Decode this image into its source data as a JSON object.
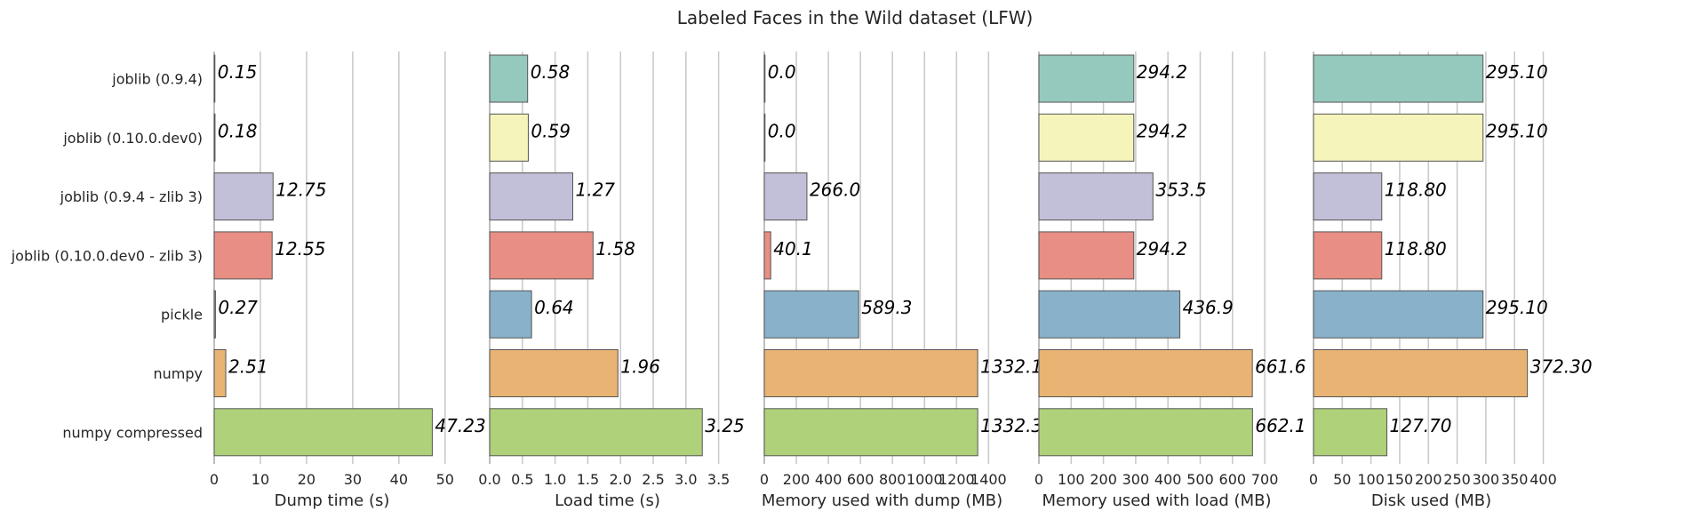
{
  "title": "Labeled Faces in the Wild dataset (LFW)",
  "colors": [
    "#96c9bd",
    "#f5f5bb",
    "#c2bfd8",
    "#e98e84",
    "#89b1ca",
    "#e8b373",
    "#aed17a"
  ],
  "chart_data": [
    {
      "type": "bar",
      "orientation": "horizontal",
      "categories": [
        "joblib (0.9.4)",
        "joblib (0.10.0.dev0)",
        "joblib (0.9.4 - zlib 3)",
        "joblib (0.10.0.dev0 - zlib 3)",
        "pickle",
        "numpy",
        "numpy compressed"
      ],
      "values": [
        0.15,
        0.18,
        12.75,
        12.55,
        0.27,
        2.51,
        47.23
      ],
      "value_labels": [
        "0.15",
        "0.18",
        "12.75",
        "12.55",
        "0.27",
        "2.51",
        "47.23"
      ],
      "xlabel": "Dump time (s)",
      "xlim": [
        0,
        51
      ],
      "xticks": [
        0,
        10,
        20,
        30,
        40,
        50
      ],
      "xtick_labels": [
        "0",
        "10",
        "20",
        "30",
        "40",
        "50"
      ],
      "grid": true
    },
    {
      "type": "bar",
      "orientation": "horizontal",
      "categories": [
        "joblib (0.9.4)",
        "joblib (0.10.0.dev0)",
        "joblib (0.9.4 - zlib 3)",
        "joblib (0.10.0.dev0 - zlib 3)",
        "pickle",
        "numpy",
        "numpy compressed"
      ],
      "values": [
        0.58,
        0.59,
        1.27,
        1.58,
        0.64,
        1.96,
        3.25
      ],
      "value_labels": [
        "0.58",
        "0.59",
        "1.27",
        "1.58",
        "0.64",
        "1.96",
        "3.25"
      ],
      "xlabel": "Load time (s)",
      "xlim": [
        0,
        3.6
      ],
      "xticks": [
        0,
        0.5,
        1,
        1.5,
        2,
        2.5,
        3,
        3.5
      ],
      "xtick_labels": [
        "0.0",
        "0.5",
        "1.0",
        "1.5",
        "2.0",
        "2.5",
        "3.0",
        "3.5"
      ],
      "grid": true
    },
    {
      "type": "bar",
      "orientation": "horizontal",
      "categories": [
        "joblib (0.9.4)",
        "joblib (0.10.0.dev0)",
        "joblib (0.9.4 - zlib 3)",
        "joblib (0.10.0.dev0 - zlib 3)",
        "pickle",
        "numpy",
        "numpy compressed"
      ],
      "values": [
        0.0,
        0.0,
        266.0,
        40.1,
        589.3,
        1332.1,
        1332.3
      ],
      "value_labels": [
        "0.0",
        "0.0",
        "266.0",
        "40.1",
        "589.3",
        "1332.1",
        "1332.3"
      ],
      "xlabel": "Memory used with dump (MB)",
      "xlim": [
        0,
        1470
      ],
      "xticks": [
        0,
        200,
        400,
        600,
        800,
        1000,
        1200,
        1400
      ],
      "xtick_labels": [
        "0",
        "200",
        "400",
        "600",
        "800",
        "1000",
        "1200",
        "1400"
      ],
      "grid": true
    },
    {
      "type": "bar",
      "orientation": "horizontal",
      "categories": [
        "joblib (0.9.4)",
        "joblib (0.10.0.dev0)",
        "joblib (0.9.4 - zlib 3)",
        "joblib (0.10.0.dev0 - zlib 3)",
        "pickle",
        "numpy",
        "numpy compressed"
      ],
      "values": [
        294.2,
        294.2,
        353.5,
        294.2,
        436.9,
        661.6,
        662.1
      ],
      "value_labels": [
        "294.2",
        "294.2",
        "353.5",
        "294.2",
        "436.9",
        "661.6",
        "662.1"
      ],
      "xlabel": "Memory used with load (MB)",
      "xlim": [
        0,
        730
      ],
      "xticks": [
        0,
        100,
        200,
        300,
        400,
        500,
        600,
        700
      ],
      "xtick_labels": [
        "0",
        "100",
        "200",
        "300",
        "400",
        "500",
        "600",
        "700"
      ],
      "grid": true
    },
    {
      "type": "bar",
      "orientation": "horizontal",
      "categories": [
        "joblib (0.9.4)",
        "joblib (0.10.0.dev0)",
        "joblib (0.9.4 - zlib 3)",
        "joblib (0.10.0.dev0 - zlib 3)",
        "pickle",
        "numpy",
        "numpy compressed"
      ],
      "values": [
        295.1,
        295.1,
        118.8,
        118.8,
        295.1,
        372.3,
        127.7
      ],
      "value_labels": [
        "295.10",
        "295.10",
        "118.80",
        "118.80",
        "295.10",
        "372.30",
        "127.70"
      ],
      "xlabel": "Disk used (MB)",
      "xlim": [
        0,
        410
      ],
      "xticks": [
        0,
        50,
        100,
        150,
        200,
        250,
        300,
        350,
        400
      ],
      "xtick_labels": [
        "0",
        "50",
        "100",
        "150",
        "200",
        "250",
        "300",
        "350",
        "400"
      ],
      "grid": true
    }
  ]
}
